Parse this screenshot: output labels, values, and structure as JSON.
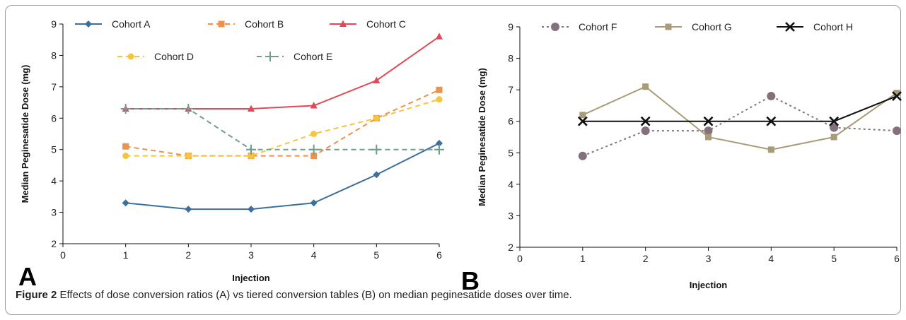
{
  "chart_data": [
    {
      "panel_label": "A",
      "type": "line",
      "xlabel": "Injection",
      "ylabel": "Median Peginesatide Dose (mg)",
      "xlim": [
        0,
        6
      ],
      "ylim": [
        2,
        9
      ],
      "x_ticks": [
        0,
        1,
        2,
        3,
        4,
        5,
        6
      ],
      "y_ticks": [
        2,
        3,
        4,
        5,
        6,
        7,
        8,
        9
      ],
      "grid": false,
      "legend_position": "top",
      "series": [
        {
          "name": "Cohort A",
          "color": "#3e6f9a",
          "marker": "diamond",
          "dash": "solid",
          "x": [
            1,
            2,
            3,
            4,
            5,
            6
          ],
          "values": [
            3.3,
            3.1,
            3.1,
            3.3,
            4.2,
            5.2
          ]
        },
        {
          "name": "Cohort B",
          "color": "#f0904a",
          "marker": "square",
          "dash": "dashed",
          "x": [
            1,
            2,
            3,
            4,
            5,
            6
          ],
          "values": [
            5.1,
            4.8,
            4.8,
            4.8,
            6.0,
            6.9
          ]
        },
        {
          "name": "Cohort C",
          "color": "#e04a57",
          "marker": "triangle",
          "dash": "solid",
          "x": [
            1,
            2,
            3,
            4,
            5,
            6
          ],
          "values": [
            6.3,
            6.3,
            6.3,
            6.4,
            7.2,
            8.6
          ]
        },
        {
          "name": "Cohort D",
          "color": "#f5c53c",
          "marker": "circle",
          "dash": "dashed",
          "x": [
            1,
            2,
            3,
            4,
            5,
            6
          ],
          "values": [
            4.8,
            4.8,
            4.8,
            5.5,
            6.0,
            6.6
          ]
        },
        {
          "name": "Cohort E",
          "color": "#6f9e90",
          "marker": "plus",
          "dash": "dashed",
          "x": [
            1,
            2,
            3,
            4,
            5,
            6
          ],
          "values": [
            6.3,
            6.3,
            5.0,
            5.0,
            5.0,
            5.0
          ]
        }
      ]
    },
    {
      "panel_label": "B",
      "type": "line",
      "xlabel": "Injection",
      "ylabel": "Median Peginesatide Dose (mg)",
      "xlim": [
        0,
        6
      ],
      "ylim": [
        2,
        9
      ],
      "x_ticks": [
        0,
        1,
        2,
        3,
        4,
        5,
        6
      ],
      "y_ticks": [
        2,
        3,
        4,
        5,
        6,
        7,
        8,
        9
      ],
      "grid": false,
      "legend_position": "top",
      "series": [
        {
          "name": "Cohort F",
          "color": "#85707e",
          "marker": "circle",
          "dash": "dotted",
          "x": [
            1,
            2,
            3,
            4,
            5,
            6
          ],
          "values": [
            4.9,
            5.7,
            5.7,
            6.8,
            5.8,
            5.7
          ]
        },
        {
          "name": "Cohort G",
          "color": "#a89c78",
          "marker": "square",
          "dash": "solid",
          "x": [
            1,
            2,
            3,
            4,
            5,
            6
          ],
          "values": [
            6.2,
            7.1,
            5.5,
            5.1,
            5.5,
            6.9
          ]
        },
        {
          "name": "Cohort H",
          "color": "#111111",
          "marker": "x",
          "dash": "solid",
          "x": [
            1,
            2,
            3,
            4,
            5,
            6
          ],
          "values": [
            6.0,
            6.0,
            6.0,
            6.0,
            6.0,
            6.8
          ]
        }
      ]
    }
  ],
  "caption": {
    "label": "Figure 2",
    "text": " Effects of dose conversion ratios (A) vs tiered conversion tables (B) on median peginesatide doses over time."
  }
}
